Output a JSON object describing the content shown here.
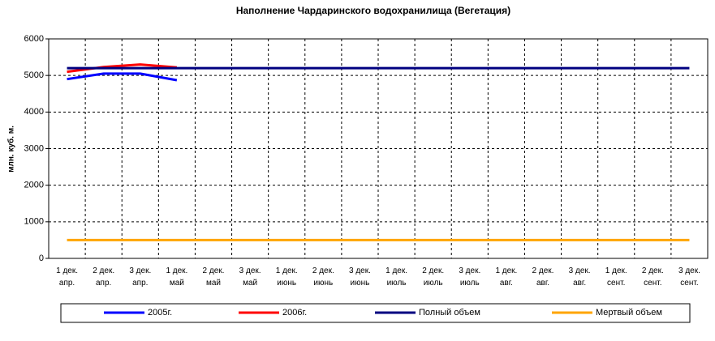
{
  "chart_data": {
    "type": "line",
    "title": "Наполнение Чардаринского водохранилища (Вегетация)",
    "y_label": "млн. куб. м.",
    "categories": [
      "1 дек.\nапр.",
      "2 дек.\nапр.",
      "3 дек.\nапр.",
      "1 дек.\nмай",
      "2 дек.\nмай",
      "3 дек.\nмай",
      "1 дек.\nиюнь",
      "2 дек.\nиюнь",
      "3 дек.\nиюнь",
      "1 дек.\nиюль",
      "2 дек.\nиюль",
      "3 дек.\nиюль",
      "1 дек.\nавг.",
      "2 дек.\nавг.",
      "3 дек.\nавг.",
      "1 дек.\nсент.",
      "2 дек.\nсент.",
      "3 дек.\nсент."
    ],
    "series": [
      {
        "name": "2005г.",
        "color": "#0000ff",
        "values": [
          4900,
          5050,
          5050,
          4870,
          null,
          null,
          null,
          null,
          null,
          null,
          null,
          null,
          null,
          null,
          null,
          null,
          null,
          null
        ]
      },
      {
        "name": "2006г.",
        "color": "#ff0000",
        "values": [
          5100,
          5230,
          5300,
          5220,
          null,
          null,
          null,
          null,
          null,
          null,
          null,
          null,
          null,
          null,
          null,
          null,
          null,
          null
        ]
      },
      {
        "name": "Полный объем",
        "color": "#000080",
        "values": [
          5200,
          5200,
          5200,
          5200,
          5200,
          5200,
          5200,
          5200,
          5200,
          5200,
          5200,
          5200,
          5200,
          5200,
          5200,
          5200,
          5200,
          5200
        ]
      },
      {
        "name": "Мертвый объем",
        "color": "#ffa500",
        "values": [
          500,
          500,
          500,
          500,
          500,
          500,
          500,
          500,
          500,
          500,
          500,
          500,
          500,
          500,
          500,
          500,
          500,
          500
        ]
      }
    ],
    "ylim": [
      0,
      6000
    ],
    "yticks": [
      0,
      1000,
      2000,
      3000,
      4000,
      5000,
      6000
    ],
    "grid": true,
    "legend": "bottom"
  }
}
